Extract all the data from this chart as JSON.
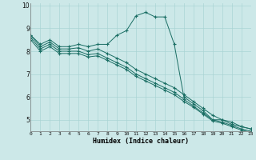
{
  "xlabel": "Humidex (Indice chaleur)",
  "ylabel": "",
  "background_color": "#cce8e8",
  "line_color": "#1a6e64",
  "grid_color": "#aad4d4",
  "xlim": [
    0,
    23
  ],
  "ylim": [
    4.5,
    10.1
  ],
  "yticks": [
    5,
    6,
    7,
    8,
    9,
    10
  ],
  "xticks": [
    0,
    1,
    2,
    3,
    4,
    5,
    6,
    7,
    8,
    9,
    10,
    11,
    12,
    13,
    14,
    15,
    16,
    17,
    18,
    19,
    20,
    21,
    22,
    23
  ],
  "series": [
    [
      8.7,
      8.3,
      8.5,
      8.2,
      8.2,
      8.3,
      8.2,
      8.3,
      8.3,
      8.7,
      8.9,
      9.55,
      9.7,
      9.5,
      9.5,
      8.3,
      6.0,
      5.7,
      5.4,
      5.0,
      5.0,
      4.8,
      4.7,
      4.6
    ],
    [
      8.7,
      8.2,
      8.4,
      8.1,
      8.1,
      8.15,
      8.0,
      8.1,
      7.9,
      7.7,
      7.5,
      7.2,
      7.0,
      6.8,
      6.6,
      6.4,
      6.1,
      5.8,
      5.5,
      5.2,
      5.0,
      4.9,
      4.7,
      4.6
    ],
    [
      8.6,
      8.1,
      8.3,
      8.0,
      8.0,
      8.0,
      7.85,
      7.9,
      7.7,
      7.5,
      7.3,
      7.0,
      6.8,
      6.6,
      6.4,
      6.2,
      5.9,
      5.6,
      5.3,
      5.0,
      4.9,
      4.75,
      4.6,
      4.5
    ],
    [
      8.5,
      8.0,
      8.2,
      7.9,
      7.9,
      7.9,
      7.75,
      7.8,
      7.6,
      7.4,
      7.2,
      6.9,
      6.7,
      6.5,
      6.3,
      6.1,
      5.8,
      5.55,
      5.25,
      4.95,
      4.85,
      4.7,
      4.55,
      4.45
    ]
  ]
}
